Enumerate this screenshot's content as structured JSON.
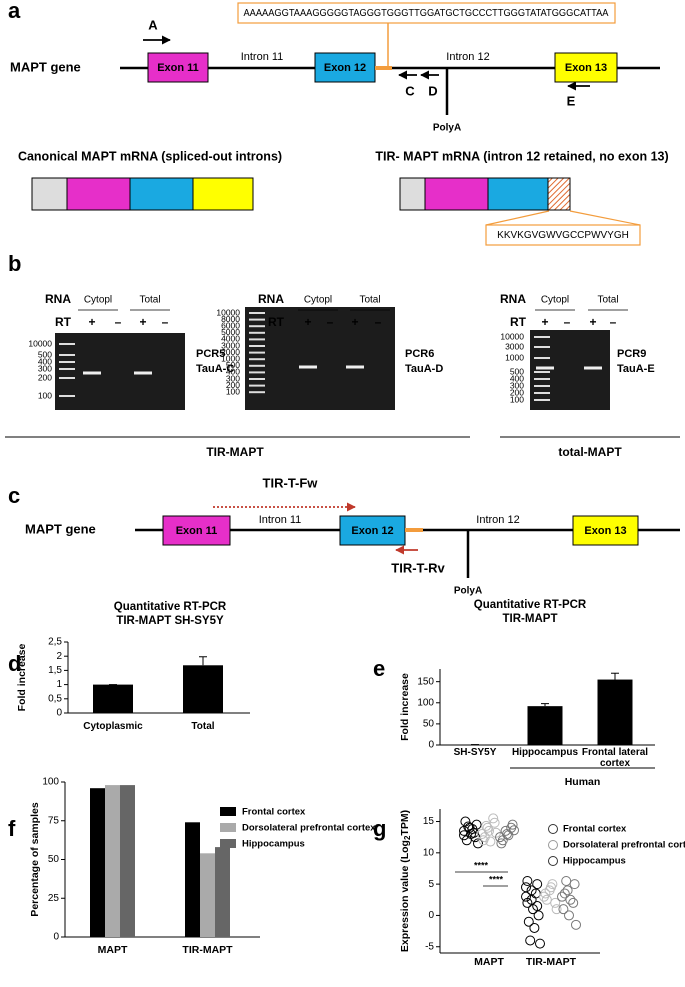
{
  "panel_labels": [
    "a",
    "b",
    "c",
    "d",
    "e",
    "f",
    "g"
  ],
  "diagram_a": {
    "sequence": "AAAAAGGTAAAGGGGGTAGGGTGGGTTGGATGCTGCCCTTGGGTATATGGGCATTAA",
    "gene_label": "MAPT gene",
    "exons": [
      "Exon 11",
      "Exon 12",
      "Exon 13"
    ],
    "introns": [
      "Intron 11",
      "Intron 12"
    ],
    "primers": [
      "A",
      "C",
      "D",
      "E"
    ],
    "polya": "PolyA",
    "mrna_titles": [
      "Canonical MAPT mRNA (spliced-out introns)",
      "TIR- MAPT mRNA (intron 12 retained, no exon 13)"
    ],
    "peptide": "KKVKGVGWVGCCPWVYGH"
  },
  "gels_b": {
    "gels": [
      {
        "rna": "RNA",
        "rt": "RT",
        "lanes": [
          "Cytopl",
          "Total"
        ],
        "signs": [
          "+",
          "–",
          "+",
          "–"
        ],
        "ladder": [
          "10000",
          "500",
          "400",
          "300",
          "200",
          "100"
        ],
        "pcr": "PCR5",
        "primer": "TauA-C"
      },
      {
        "rna": "RNA",
        "rt": "RT",
        "lanes": [
          "Cytopl",
          "Total"
        ],
        "signs": [
          "+",
          "–",
          "+",
          "–"
        ],
        "ladder": [
          "10000",
          "8000",
          "6000",
          "5000",
          "4000",
          "3000",
          "2000",
          "1000",
          "500",
          "400",
          "300",
          "200",
          "100"
        ],
        "pcr": "PCR6",
        "primer": "TauA-D"
      },
      {
        "rna": "RNA",
        "rt": "RT",
        "lanes": [
          "Cytopl",
          "Total"
        ],
        "signs": [
          "+",
          "–",
          "+",
          "–"
        ],
        "ladder": [
          "10000",
          "3000",
          "1000",
          "500",
          "400",
          "300",
          "200",
          "100"
        ],
        "pcr": "PCR9",
        "primer": "TauA-E"
      }
    ],
    "groups": [
      "TIR-MAPT",
      "total-MAPT"
    ]
  },
  "diagram_c": {
    "gene_label": "MAPT gene",
    "exons": [
      "Exon 11",
      "Exon 12",
      "Exon 13"
    ],
    "introns": [
      "Intron 11",
      "Intron 12"
    ],
    "forward": "TIR-T-Fw",
    "reverse": "TIR-T-Rv",
    "polya": "PolyA"
  },
  "chart_data": [
    {
      "type": "bar",
      "title": "Quantitative RT-PCR",
      "subtitle": "TIR-MAPT SH-SY5Y",
      "ylabel": "Fold increase",
      "categories": [
        "Cytoplasmic",
        "Total"
      ],
      "values": [
        1,
        1.68
      ],
      "errors": [
        0,
        0.3
      ],
      "color": "#000000",
      "ylim": [
        0,
        2.5
      ],
      "yticks": [
        0,
        {
          "value": 0.5,
          "label": "0,5"
        },
        1,
        {
          "value": 1.5,
          "label": "1,5"
        },
        2,
        {
          "value": 2.5,
          "label": "2,5"
        }
      ]
    },
    {
      "type": "bar",
      "title": "Quantitative RT-PCR",
      "subtitle": "TIR-MAPT",
      "ylabel": "Fold increase",
      "categories": [
        "SH-SY5Y",
        "Hippocampus",
        "Frontal lateral cortex"
      ],
      "values": [
        1,
        92,
        155
      ],
      "errors": [
        0,
        6,
        15
      ],
      "color": "#000000",
      "ylim": [
        0,
        180
      ],
      "yticks": [
        0,
        50,
        100,
        150
      ],
      "group_label": "Human"
    },
    {
      "type": "grouped_bar",
      "ylabel": "Percentage of samples",
      "categories": [
        "MAPT",
        "TIR-MAPT"
      ],
      "series": [
        {
          "name": "Frontal cortex",
          "color": "#000000",
          "values": [
            96,
            74
          ]
        },
        {
          "name": "Dorsolateral prefrontal cortex",
          "color": "#aaaaaa",
          "values": [
            98,
            54
          ]
        },
        {
          "name": "Hippocampus",
          "color": "#666666",
          "values": [
            98,
            58
          ]
        }
      ],
      "ylim": [
        0,
        100
      ],
      "yticks": [
        0,
        25,
        50,
        75,
        100
      ]
    },
    {
      "type": "strip",
      "ylabel": [
        "Expression value (Log",
        "2",
        "TPM)"
      ],
      "categories": [
        "MAPT",
        "TIR-MAPT"
      ],
      "series": [
        {
          "name": "Frontal cortex",
          "color": "#000000",
          "values": [
            [
              13.5,
              14,
              12.5,
              15,
              13,
              14.5,
              12,
              13.8,
              11.5,
              14.2,
              13.2,
              12.8
            ],
            [
              3,
              4,
              5,
              2,
              1,
              0,
              -1,
              -2,
              -4.5,
              -4,
              3.5,
              4.5,
              2.5,
              1.5,
              5.5
            ]
          ]
        },
        {
          "name": "Dorsolateral prefrontal cortex",
          "color": "#bbbbbb",
          "values": [
            [
              13,
              14,
              15.5,
              12,
              13.5,
              14.8,
              12.5,
              11.8,
              13.2,
              14.3
            ],
            [
              3,
              4,
              2,
              3.5,
              4.5,
              1,
              2.5,
              5
            ]
          ]
        },
        {
          "name": "Hippocampus",
          "color": "#777777",
          "values": [
            [
              12.5,
              13.5,
              14,
              11.5,
              13,
              14.5,
              12,
              12.8,
              13.6
            ],
            [
              3,
              4,
              2,
              1,
              0,
              5,
              3.5,
              2.5,
              -1.5,
              5.5
            ]
          ]
        }
      ],
      "ylim": [
        -6,
        17
      ],
      "yticks": [
        -5,
        0,
        5,
        10,
        15
      ],
      "annotations": [
        "****",
        "****"
      ]
    }
  ]
}
